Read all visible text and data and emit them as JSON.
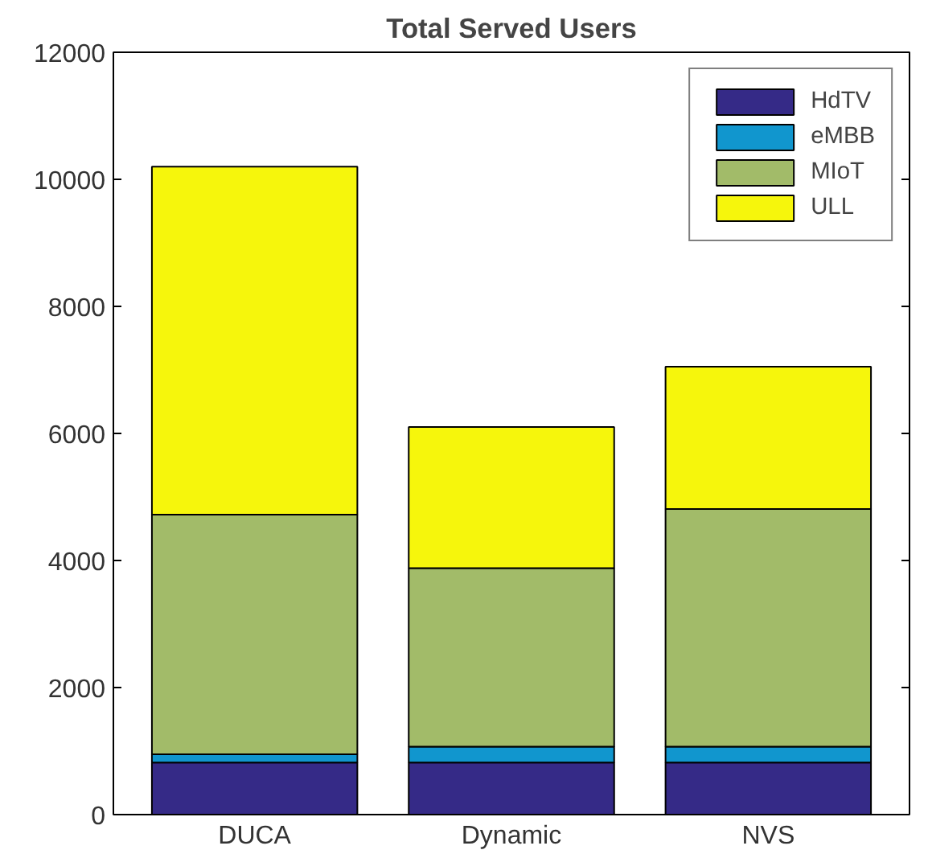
{
  "chart_data": {
    "type": "bar",
    "stacked": true,
    "title": "Total Served Users",
    "categories": [
      "DUCA",
      "Dynamic",
      "NVS"
    ],
    "series": [
      {
        "name": "HdTV",
        "color": "#352a87",
        "values": [
          820,
          820,
          820
        ]
      },
      {
        "name": "eMBB",
        "color": "#1196ce",
        "values": [
          130,
          250,
          250
        ]
      },
      {
        "name": "MIoT",
        "color": "#a2bb69",
        "values": [
          3770,
          2810,
          3740
        ]
      },
      {
        "name": "ULL",
        "color": "#f6f60c",
        "values": [
          5480,
          2220,
          2240
        ]
      }
    ],
    "ylim": [
      0,
      12000
    ],
    "yticks": [
      0,
      2000,
      4000,
      6000,
      8000,
      10000,
      12000
    ],
    "grid": false,
    "legend": "top right"
  }
}
